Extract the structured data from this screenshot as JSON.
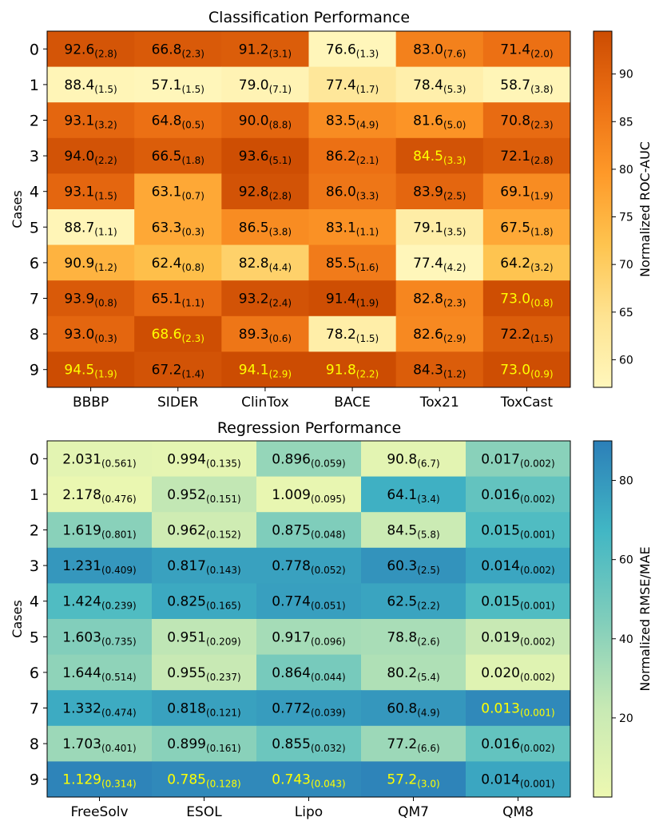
{
  "chart_data": [
    {
      "type": "heatmap",
      "title": "Classification Performance",
      "ylabel": "Cases",
      "colorbar_label": "Normalized ROC-AUC",
      "colorbar_ticks": [
        "60",
        "65",
        "70",
        "75",
        "80",
        "85",
        "90"
      ],
      "colorbar_range": [
        57.1,
        94.5
      ],
      "colormap": [
        "#fff7bc",
        "#fee391",
        "#fec44f",
        "#fe9929",
        "#ec7014",
        "#cc4c02"
      ],
      "columns": [
        "BBBP",
        "SIDER",
        "ClinTox",
        "BACE",
        "Tox21",
        "ToxCast"
      ],
      "rows": [
        "0",
        "1",
        "2",
        "3",
        "4",
        "5",
        "6",
        "7",
        "8",
        "9"
      ],
      "cells": [
        [
          {
            "v": "92.6",
            "s": "(2.8)",
            "c": 92.6,
            "best": false
          },
          {
            "v": "66.8",
            "s": "(2.3)",
            "c": 91.5,
            "best": false
          },
          {
            "v": "91.2",
            "s": "(3.1)",
            "c": 91.0,
            "best": false
          },
          {
            "v": "76.6",
            "s": "(1.3)",
            "c": 57.5,
            "best": false
          },
          {
            "v": "83.0",
            "s": "(7.6)",
            "c": 84.0,
            "best": false
          },
          {
            "v": "71.4",
            "s": "(2.0)",
            "c": 87.0,
            "best": false
          }
        ],
        [
          {
            "v": "88.4",
            "s": "(1.5)",
            "c": 58.0,
            "best": false
          },
          {
            "v": "57.1",
            "s": "(1.5)",
            "c": 57.5,
            "best": false
          },
          {
            "v": "79.0",
            "s": "(7.1)",
            "c": 58.5,
            "best": false
          },
          {
            "v": "77.4",
            "s": "(1.7)",
            "c": 63.0,
            "best": false
          },
          {
            "v": "78.4",
            "s": "(5.3)",
            "c": 60.0,
            "best": false
          },
          {
            "v": "58.7",
            "s": "(3.8)",
            "c": 58.0,
            "best": false
          }
        ],
        [
          {
            "v": "93.1",
            "s": "(3.2)",
            "c": 89.0,
            "best": false
          },
          {
            "v": "64.8",
            "s": "(0.5)",
            "c": 87.0,
            "best": false
          },
          {
            "v": "90.0",
            "s": "(8.8)",
            "c": 89.0,
            "best": false
          },
          {
            "v": "83.5",
            "s": "(4.9)",
            "c": 82.0,
            "best": false
          },
          {
            "v": "81.6",
            "s": "(5.0)",
            "c": 80.5,
            "best": false
          },
          {
            "v": "70.8",
            "s": "(2.3)",
            "c": 88.0,
            "best": false
          }
        ],
        [
          {
            "v": "94.0",
            "s": "(2.2)",
            "c": 93.0,
            "best": false
          },
          {
            "v": "66.5",
            "s": "(1.8)",
            "c": 91.0,
            "best": false
          },
          {
            "v": "93.6",
            "s": "(5.1)",
            "c": 94.0,
            "best": false
          },
          {
            "v": "86.2",
            "s": "(2.1)",
            "c": 87.0,
            "best": false
          },
          {
            "v": "84.5",
            "s": "(3.3)",
            "c": 93.0,
            "best": true
          },
          {
            "v": "72.1",
            "s": "(2.8)",
            "c": 91.0,
            "best": false
          }
        ],
        [
          {
            "v": "93.1",
            "s": "(1.5)",
            "c": 89.0,
            "best": false
          },
          {
            "v": "63.1",
            "s": "(0.7)",
            "c": 77.0,
            "best": false
          },
          {
            "v": "92.8",
            "s": "(2.8)",
            "c": 93.0,
            "best": false
          },
          {
            "v": "86.0",
            "s": "(3.3)",
            "c": 86.0,
            "best": false
          },
          {
            "v": "83.9",
            "s": "(2.5)",
            "c": 89.0,
            "best": false
          },
          {
            "v": "69.1",
            "s": "(1.9)",
            "c": 82.0,
            "best": false
          }
        ],
        [
          {
            "v": "88.7",
            "s": "(1.1)",
            "c": 58.0,
            "best": false
          },
          {
            "v": "63.3",
            "s": "(0.3)",
            "c": 77.0,
            "best": false
          },
          {
            "v": "86.5",
            "s": "(3.8)",
            "c": 82.0,
            "best": false
          },
          {
            "v": "83.1",
            "s": "(1.1)",
            "c": 81.0,
            "best": false
          },
          {
            "v": "79.1",
            "s": "(3.5)",
            "c": 61.0,
            "best": false
          },
          {
            "v": "67.5",
            "s": "(1.8)",
            "c": 77.0,
            "best": false
          }
        ],
        [
          {
            "v": "90.9",
            "s": "(1.2)",
            "c": 75.0,
            "best": false
          },
          {
            "v": "62.4",
            "s": "(0.8)",
            "c": 73.0,
            "best": false
          },
          {
            "v": "82.8",
            "s": "(4.4)",
            "c": 69.0,
            "best": false
          },
          {
            "v": "85.5",
            "s": "(1.6)",
            "c": 85.0,
            "best": false
          },
          {
            "v": "77.4",
            "s": "(4.2)",
            "c": 57.5,
            "best": false
          },
          {
            "v": "64.2",
            "s": "(3.2)",
            "c": 72.0,
            "best": false
          }
        ],
        [
          {
            "v": "93.9",
            "s": "(0.8)",
            "c": 91.5,
            "best": false
          },
          {
            "v": "65.1",
            "s": "(1.1)",
            "c": 88.0,
            "best": false
          },
          {
            "v": "93.2",
            "s": "(2.4)",
            "c": 93.0,
            "best": false
          },
          {
            "v": "91.4",
            "s": "(1.9)",
            "c": 94.0,
            "best": false
          },
          {
            "v": "82.8",
            "s": "(2.3)",
            "c": 83.0,
            "best": false
          },
          {
            "v": "73.0",
            "s": "(0.8)",
            "c": 94.0,
            "best": true
          }
        ],
        [
          {
            "v": "93.0",
            "s": "(0.3)",
            "c": 89.0,
            "best": false
          },
          {
            "v": "68.6",
            "s": "(2.3)",
            "c": 94.0,
            "best": true
          },
          {
            "v": "89.3",
            "s": "(0.6)",
            "c": 86.0,
            "best": false
          },
          {
            "v": "78.2",
            "s": "(1.5)",
            "c": 60.5,
            "best": false
          },
          {
            "v": "82.6",
            "s": "(2.9)",
            "c": 82.5,
            "best": false
          },
          {
            "v": "72.2",
            "s": "(1.5)",
            "c": 91.0,
            "best": false
          }
        ],
        [
          {
            "v": "94.5",
            "s": "(1.9)",
            "c": 94.5,
            "best": true
          },
          {
            "v": "67.2",
            "s": "(1.4)",
            "c": 93.0,
            "best": false
          },
          {
            "v": "94.1",
            "s": "(2.9)",
            "c": 94.5,
            "best": true
          },
          {
            "v": "91.8",
            "s": "(2.2)",
            "c": 94.5,
            "best": true
          },
          {
            "v": "84.3",
            "s": "(1.2)",
            "c": 91.0,
            "best": false
          },
          {
            "v": "73.0",
            "s": "(0.9)",
            "c": 94.0,
            "best": true
          }
        ]
      ]
    },
    {
      "type": "heatmap",
      "title": "Regression Performance",
      "ylabel": "Cases",
      "colorbar_label": "Normalized RMSE/MAE",
      "colorbar_ticks": [
        "20",
        "40",
        "60",
        "80"
      ],
      "colorbar_range": [
        0,
        90
      ],
      "colormap": [
        "#edf8b1",
        "#c7e9b4",
        "#7fcdbb",
        "#41b6c4",
        "#2c7fb8"
      ],
      "columns": [
        "FreeSolv",
        "ESOL",
        "Lipo",
        "QM7",
        "QM8"
      ],
      "rows": [
        "0",
        "1",
        "2",
        "3",
        "4",
        "5",
        "6",
        "7",
        "8",
        "9"
      ],
      "cells": [
        [
          {
            "v": "2.031",
            "s": "(0.561)",
            "c": 6,
            "best": false
          },
          {
            "v": "0.994",
            "s": "(0.135)",
            "c": 5,
            "best": false
          },
          {
            "v": "0.896",
            "s": "(0.059)",
            "c": 38,
            "best": false
          },
          {
            "v": "90.8",
            "s": "(6.7)",
            "c": 6,
            "best": false
          },
          {
            "v": "0.017",
            "s": "(0.002)",
            "c": 42,
            "best": false
          }
        ],
        [
          {
            "v": "2.178",
            "s": "(0.476)",
            "c": 2,
            "best": false
          },
          {
            "v": "0.952",
            "s": "(0.151)",
            "c": 24,
            "best": false
          },
          {
            "v": "1.009",
            "s": "(0.095)",
            "c": 3,
            "best": false
          },
          {
            "v": "64.1",
            "s": "(3.4)",
            "c": 70,
            "best": false
          },
          {
            "v": "0.016",
            "s": "(0.002)",
            "c": 55,
            "best": false
          }
        ],
        [
          {
            "v": "1.619",
            "s": "(0.801)",
            "c": 42,
            "best": false
          },
          {
            "v": "0.962",
            "s": "(0.152)",
            "c": 18,
            "best": false
          },
          {
            "v": "0.875",
            "s": "(0.048)",
            "c": 45,
            "best": false
          },
          {
            "v": "84.5",
            "s": "(5.8)",
            "c": 20,
            "best": false
          },
          {
            "v": "0.015",
            "s": "(0.001)",
            "c": 62,
            "best": false
          }
        ],
        [
          {
            "v": "1.231",
            "s": "(0.409)",
            "c": 80,
            "best": false
          },
          {
            "v": "0.817",
            "s": "(0.143)",
            "c": 76,
            "best": false
          },
          {
            "v": "0.778",
            "s": "(0.052)",
            "c": 76,
            "best": false
          },
          {
            "v": "60.3",
            "s": "(2.5)",
            "c": 82,
            "best": false
          },
          {
            "v": "0.014",
            "s": "(0.002)",
            "c": 74,
            "best": false
          }
        ],
        [
          {
            "v": "1.424",
            "s": "(0.239)",
            "c": 62,
            "best": false
          },
          {
            "v": "0.825",
            "s": "(0.165)",
            "c": 73,
            "best": false
          },
          {
            "v": "0.774",
            "s": "(0.051)",
            "c": 77,
            "best": false
          },
          {
            "v": "62.5",
            "s": "(2.2)",
            "c": 75,
            "best": false
          },
          {
            "v": "0.015",
            "s": "(0.001)",
            "c": 62,
            "best": false
          }
        ],
        [
          {
            "v": "1.603",
            "s": "(0.735)",
            "c": 44,
            "best": false
          },
          {
            "v": "0.951",
            "s": "(0.209)",
            "c": 25,
            "best": false
          },
          {
            "v": "0.917",
            "s": "(0.096)",
            "c": 33,
            "best": false
          },
          {
            "v": "78.8",
            "s": "(2.6)",
            "c": 32,
            "best": false
          },
          {
            "v": "0.019",
            "s": "(0.002)",
            "c": 22,
            "best": false
          }
        ],
        [
          {
            "v": "1.644",
            "s": "(0.514)",
            "c": 40,
            "best": false
          },
          {
            "v": "0.955",
            "s": "(0.237)",
            "c": 22,
            "best": false
          },
          {
            "v": "0.864",
            "s": "(0.044)",
            "c": 48,
            "best": false
          },
          {
            "v": "80.2",
            "s": "(5.4)",
            "c": 30,
            "best": false
          },
          {
            "v": "0.020",
            "s": "(0.002)",
            "c": 8,
            "best": false
          }
        ],
        [
          {
            "v": "1.332",
            "s": "(0.474)",
            "c": 72,
            "best": false
          },
          {
            "v": "0.818",
            "s": "(0.121)",
            "c": 76,
            "best": false
          },
          {
            "v": "0.772",
            "s": "(0.039)",
            "c": 78,
            "best": false
          },
          {
            "v": "60.8",
            "s": "(4.9)",
            "c": 80,
            "best": false
          },
          {
            "v": "0.013",
            "s": "(0.001)",
            "c": 86,
            "best": true
          }
        ],
        [
          {
            "v": "1.703",
            "s": "(0.401)",
            "c": 36,
            "best": false
          },
          {
            "v": "0.899",
            "s": "(0.161)",
            "c": 42,
            "best": false
          },
          {
            "v": "0.855",
            "s": "(0.032)",
            "c": 52,
            "best": false
          },
          {
            "v": "77.2",
            "s": "(6.6)",
            "c": 36,
            "best": false
          },
          {
            "v": "0.016",
            "s": "(0.002)",
            "c": 55,
            "best": false
          }
        ],
        [
          {
            "v": "1.129",
            "s": "(0.314)",
            "c": 88,
            "best": true
          },
          {
            "v": "0.785",
            "s": "(0.128)",
            "c": 86,
            "best": true
          },
          {
            "v": "0.743",
            "s": "(0.043)",
            "c": 86,
            "best": true
          },
          {
            "v": "57.2",
            "s": "(3.0)",
            "c": 88,
            "best": true
          },
          {
            "v": "0.014",
            "s": "(0.001)",
            "c": 74,
            "best": false
          }
        ]
      ]
    }
  ]
}
